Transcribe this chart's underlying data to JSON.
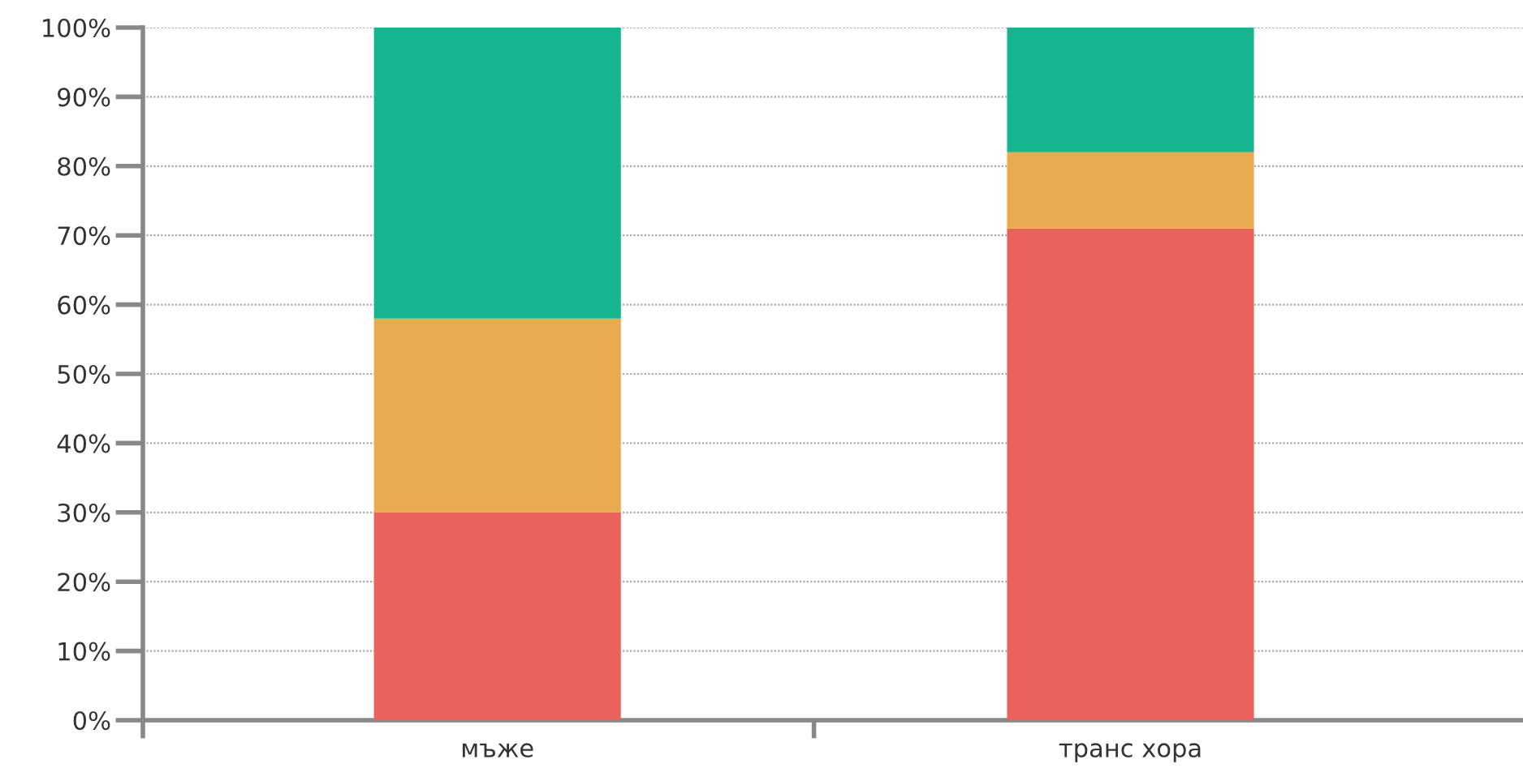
{
  "chart_data": {
    "type": "bar",
    "stacked": true,
    "categories": [
      "мъже",
      "транс хора"
    ],
    "series": [
      {
        "color": "#eb615c",
        "values": [
          30,
          71
        ]
      },
      {
        "color": "#e9ab4f",
        "values": [
          28,
          11
        ]
      },
      {
        "color": "#15b590",
        "values": [
          42,
          18
        ]
      }
    ],
    "ylim": [
      0,
      100
    ],
    "yticks": [
      {
        "value": 0,
        "label": "0%"
      },
      {
        "value": 10,
        "label": "10%"
      },
      {
        "value": 20,
        "label": "20%"
      },
      {
        "value": 30,
        "label": "30%"
      },
      {
        "value": 40,
        "label": "40%"
      },
      {
        "value": 50,
        "label": "50%"
      },
      {
        "value": 60,
        "label": "60%"
      },
      {
        "value": 70,
        "label": "70%"
      },
      {
        "value": 80,
        "label": "80%"
      },
      {
        "value": 90,
        "label": "90%"
      },
      {
        "value": 100,
        "label": "100%"
      }
    ],
    "grid": "y"
  }
}
